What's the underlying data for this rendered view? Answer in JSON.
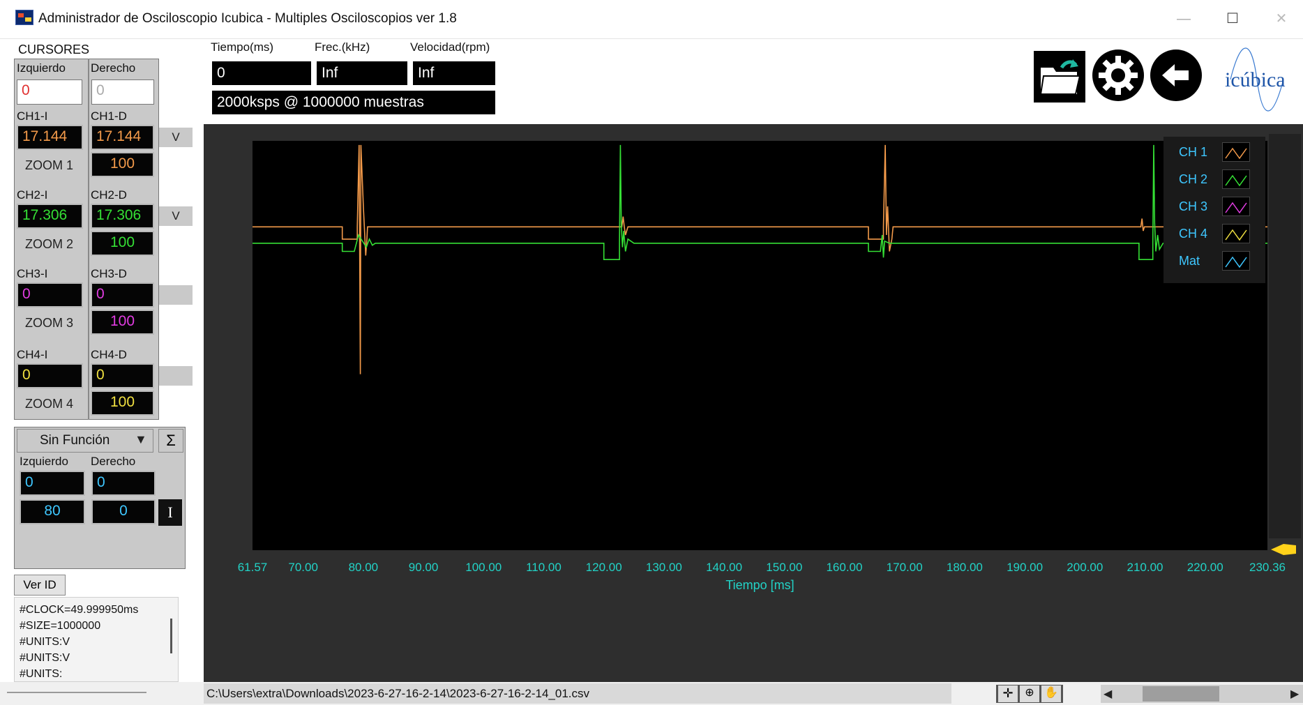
{
  "window": {
    "title": "Administrador de Osciloscopio Icubica - Multiples Osciloscopios ver 1.8",
    "minimize": "—",
    "maximize": "☐",
    "close": "✕"
  },
  "cursors": {
    "title": "CURSORES",
    "left_header": "Izquierdo",
    "right_header": "Derecho",
    "left_value": "0",
    "right_value": "0",
    "channels": [
      {
        "left_label": "CH1-I",
        "right_label": "CH1-D",
        "left_value": "17.144",
        "right_value": "17.144",
        "zoom_label": "ZOOM 1",
        "zoom_value": "100",
        "unit_button": "V",
        "color": "#f39a4a"
      },
      {
        "left_label": "CH2-I",
        "right_label": "CH2-D",
        "left_value": "17.306",
        "right_value": "17.306",
        "zoom_label": "ZOOM 2",
        "zoom_value": "100",
        "unit_button": "V",
        "color": "#35e035"
      },
      {
        "left_label": "CH3-I",
        "right_label": "CH3-D",
        "left_value": "0",
        "right_value": "0",
        "zoom_label": "ZOOM 3",
        "zoom_value": "100",
        "unit_button": "",
        "color": "#e23ce2"
      },
      {
        "left_label": "CH4-I",
        "right_label": "CH4-D",
        "left_value": "0",
        "right_value": "0",
        "zoom_label": "ZOOM 4",
        "zoom_value": "100",
        "unit_button": "",
        "color": "#f0e040"
      }
    ]
  },
  "function_panel": {
    "selected": "Sin Función",
    "sigma": "Σ",
    "left_header": "Izquierdo",
    "right_header": "Derecho",
    "left_value": "0",
    "right_value": "0",
    "left_value2": "80",
    "right_value2": "0",
    "i_button": "I",
    "color": "#3ec7ff"
  },
  "ver_id": {
    "button": "Ver ID",
    "lines": [
      "#CLOCK=49.999950ms",
      "#SIZE=1000000",
      "#UNITS:V",
      "#UNITS:V",
      "#UNITS:"
    ]
  },
  "readouts": {
    "time_label": "Tiempo(ms)",
    "freq_label": "Frec.(kHz)",
    "speed_label": "Velocidad(rpm)",
    "time_value": "0",
    "freq_value": "Inf",
    "speed_value": "Inf",
    "sampling": "2000ksps @ 1000000 muestras"
  },
  "toolbar": {
    "open_icon": "folder-open-icon",
    "settings_icon": "gear-icon",
    "back_icon": "back-arrow-icon",
    "logo": "icúbica"
  },
  "chart_data": {
    "type": "line",
    "xlabel": "Tiempo [ms]",
    "xlim": [
      61.57,
      230.36
    ],
    "x_ticks": [
      "61.57",
      "70.00",
      "80.00",
      "90.00",
      "100.00",
      "110.00",
      "120.00",
      "130.00",
      "140.00",
      "150.00",
      "160.00",
      "170.00",
      "180.00",
      "190.00",
      "200.00",
      "210.00",
      "220.00",
      "230.36"
    ],
    "grid": false,
    "legend_position": "top-right",
    "legend": [
      {
        "name": "CH 1",
        "color": "#f39a4a"
      },
      {
        "name": "CH 2",
        "color": "#35e035"
      },
      {
        "name": "CH 3",
        "color": "#e23ce2"
      },
      {
        "name": "CH 4",
        "color": "#f0e040"
      },
      {
        "name": "Mat",
        "color": "#3ec7ff"
      }
    ],
    "series": [
      {
        "name": "CH 1",
        "color": "#f39a4a",
        "x": [
          61.57,
          76.5,
          76.5,
          79.0,
          79.0,
          79.3,
          79.5,
          79.6,
          80.0,
          80.4,
          80.6,
          80.7,
          81.0,
          123.0,
          123.2,
          123.4,
          123.6,
          124.0,
          164.0,
          164.0,
          166.5,
          166.5,
          166.8,
          167.0,
          167.2,
          167.5,
          167.9,
          168.1,
          168.3,
          168.6,
          209.3,
          209.5,
          209.7,
          209.9,
          210.2,
          230.36
        ],
        "y": [
          0.79,
          0.79,
          0.76,
          0.76,
          0.79,
          0.99,
          0.43,
          0.99,
          0.84,
          0.72,
          0.76,
          0.79,
          0.79,
          0.79,
          0.815,
          0.79,
          0.77,
          0.79,
          0.79,
          0.76,
          0.76,
          0.79,
          0.99,
          0.77,
          0.84,
          0.73,
          0.76,
          0.79,
          0.79,
          0.79,
          0.79,
          0.81,
          0.78,
          0.79,
          0.79,
          0.79
        ]
      },
      {
        "name": "CH 2",
        "color": "#35e035",
        "x": [
          61.57,
          76.5,
          76.5,
          78.5,
          79.2,
          80.5,
          81.0,
          81.5,
          82.0,
          120.0,
          120.0,
          122.6,
          122.6,
          122.75,
          122.9,
          123.1,
          123.3,
          123.6,
          124.0,
          125.0,
          164.0,
          164.0,
          166.0,
          166.3,
          166.5,
          166.7,
          167.5,
          209.0,
          209.0,
          211.3,
          211.3,
          211.45,
          211.6,
          211.8,
          212.1,
          212.4,
          213.0,
          230.36
        ],
        "y": [
          0.75,
          0.75,
          0.73,
          0.73,
          0.77,
          0.74,
          0.76,
          0.745,
          0.75,
          0.75,
          0.71,
          0.71,
          0.75,
          0.99,
          0.795,
          0.74,
          0.78,
          0.73,
          0.76,
          0.75,
          0.75,
          0.73,
          0.73,
          0.77,
          0.715,
          0.755,
          0.75,
          0.75,
          0.71,
          0.71,
          0.75,
          0.99,
          0.8,
          0.73,
          0.77,
          0.735,
          0.75,
          0.75
        ]
      }
    ]
  },
  "status": {
    "file_path": "C:\\Users\\extra\\Downloads\\2023-6-27-16-2-14\\2023-6-27-16-2-14_01.csv"
  }
}
